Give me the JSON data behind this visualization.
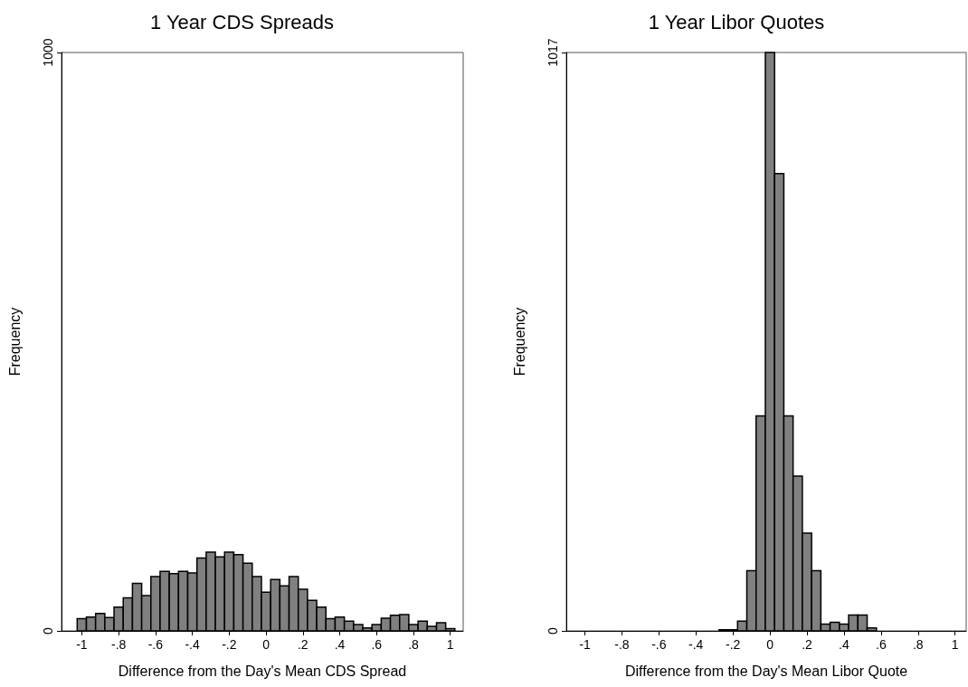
{
  "chart_data": [
    {
      "type": "histogram",
      "title": "1 Year CDS Spreads",
      "xlabel": "Difference from the Day's Mean CDS Spread",
      "ylabel": "Frequency",
      "color": "#808080",
      "bins": [
        -1.025,
        -0.975,
        -0.925,
        -0.875,
        -0.825,
        -0.775,
        -0.725,
        -0.675,
        -0.625,
        -0.575,
        -0.525,
        -0.475,
        -0.425,
        -0.375,
        -0.325,
        -0.275,
        -0.225,
        -0.175,
        -0.125,
        -0.075,
        -0.025,
        0.025,
        0.075,
        0.125,
        0.175,
        0.225,
        0.275,
        0.325,
        0.375,
        0.425,
        0.475,
        0.525,
        0.575,
        0.625,
        0.675,
        0.725,
        0.775,
        0.825,
        0.875,
        0.925,
        0.975,
        1.025
      ],
      "values": [
        21,
        24,
        30,
        23,
        41,
        57,
        82,
        61,
        94,
        103,
        99,
        103,
        100,
        126,
        136,
        128,
        136,
        132,
        117,
        94,
        67,
        89,
        78,
        94,
        72,
        53,
        41,
        21,
        24,
        17,
        11,
        5,
        11,
        22,
        27,
        28,
        11,
        17,
        8,
        14,
        4
      ],
      "xlim": [
        -1.11,
        1.07
      ],
      "ylim": [
        0,
        1000
      ],
      "xticks": [
        {
          "value": -1,
          "label": "-1"
        },
        {
          "value": -0.8,
          "label": "-.8"
        },
        {
          "value": -0.6,
          "label": "-.6"
        },
        {
          "value": -0.4,
          "label": "-.4"
        },
        {
          "value": -0.2,
          "label": "-.2"
        },
        {
          "value": 0,
          "label": "0"
        },
        {
          "value": 0.2,
          "label": ".2"
        },
        {
          "value": 0.4,
          "label": ".4"
        },
        {
          "value": 0.6,
          "label": ".6"
        },
        {
          "value": 0.8,
          "label": ".8"
        },
        1
      ],
      "yticks": [
        {
          "value": 0,
          "label": "0"
        },
        1000
      ],
      "grid": false
    },
    {
      "type": "histogram",
      "title": "1 Year Libor Quotes",
      "xlabel": "Difference from the Day's Mean Libor Quote",
      "ylabel": "Frequency",
      "color": "#808080",
      "bins": [
        -0.275,
        -0.225,
        -0.175,
        -0.125,
        -0.075,
        -0.025,
        0.025,
        0.075,
        0.125,
        0.175,
        0.225,
        0.275,
        0.325,
        0.375,
        0.425,
        0.475,
        0.525,
        0.575
      ],
      "values": [
        2,
        2,
        17,
        106,
        378,
        1017,
        804,
        378,
        272,
        172,
        106,
        12,
        15,
        12,
        28,
        28,
        5
      ],
      "xlim": [
        -1.1,
        1.06
      ],
      "ylim": [
        0,
        1017
      ],
      "xticks": [
        {
          "value": -1,
          "label": "-1"
        },
        {
          "value": -0.8,
          "label": "-.8"
        },
        {
          "value": -0.6,
          "label": "-.6"
        },
        {
          "value": -0.4,
          "label": "-.4"
        },
        {
          "value": -0.2,
          "label": "-.2"
        },
        {
          "value": 0,
          "label": "0"
        },
        {
          "value": 0.2,
          "label": ".2"
        },
        {
          "value": 0.4,
          "label": ".4"
        },
        {
          "value": 0.6,
          "label": ".6"
        },
        {
          "value": 0.8,
          "label": ".8"
        },
        1
      ],
      "yticks": [
        {
          "value": 0,
          "label": "0"
        },
        1017
      ],
      "grid": false
    }
  ]
}
